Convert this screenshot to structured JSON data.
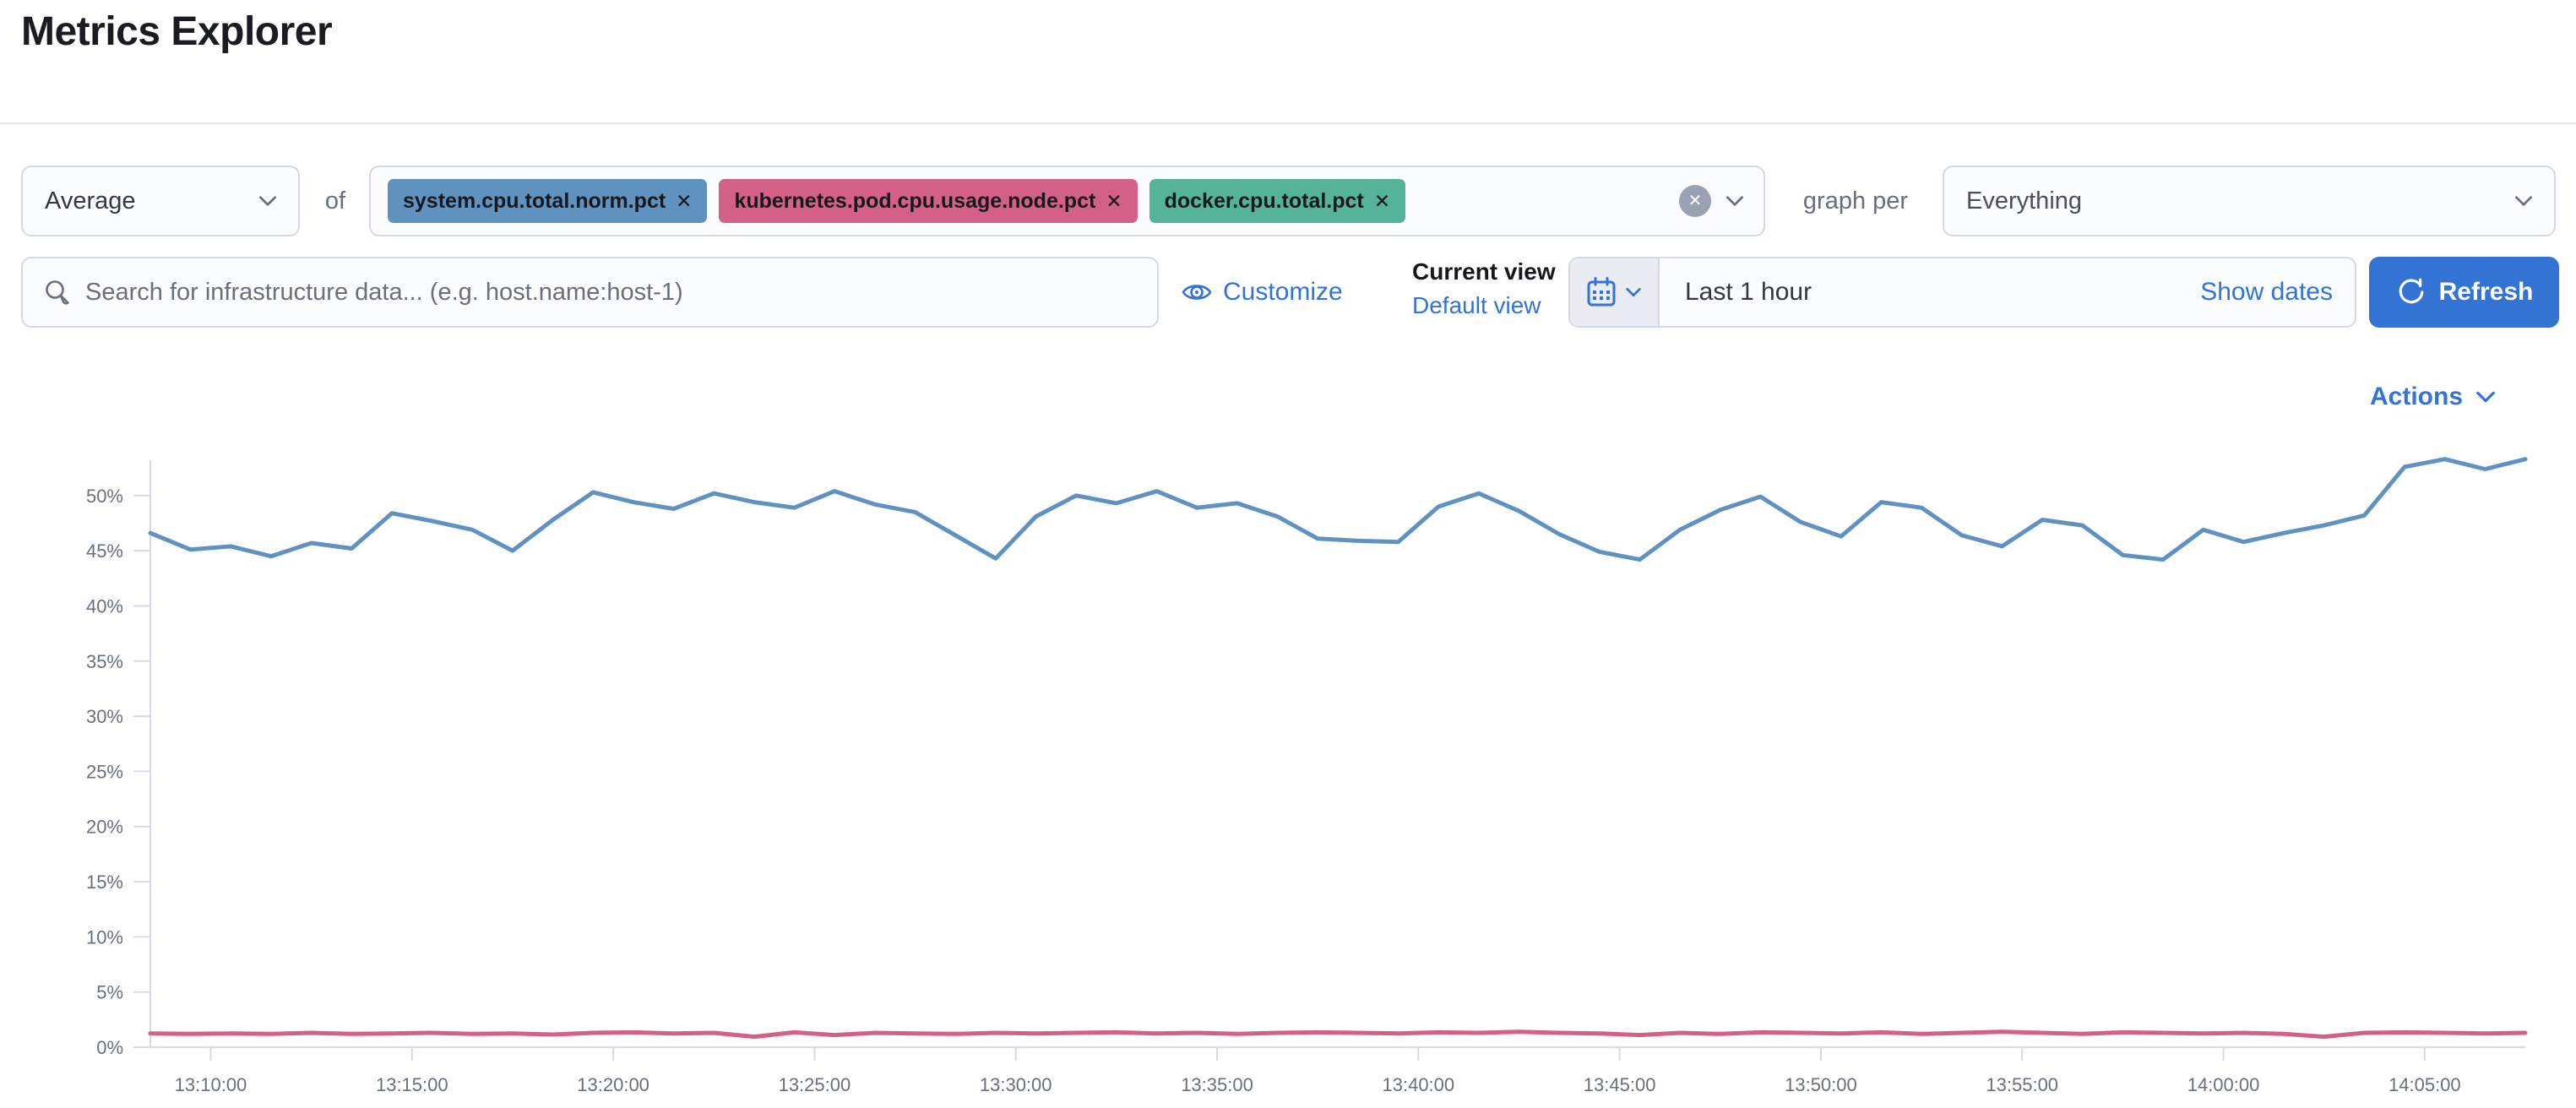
{
  "page": {
    "title": "Metrics Explorer"
  },
  "colors": {
    "accent": "#3273d4",
    "border": "#d3dae6",
    "axis": "#d5dae3",
    "axis_text": "#69707d",
    "pill_blue": "#6092c0",
    "pill_pink": "#d36086",
    "pill_green": "#54b399"
  },
  "toolbar": {
    "aggregation": {
      "value": "Average"
    },
    "of_label": "of",
    "metrics": [
      {
        "label": "system.cpu.total.norm.pct",
        "color": "#6092c0",
        "remove_icon": "✕"
      },
      {
        "label": "kubernetes.pod.cpu.usage.node.pct",
        "color": "#d36086",
        "remove_icon": "✕"
      },
      {
        "label": "docker.cpu.total.pct",
        "color": "#54b399",
        "remove_icon": "✕"
      }
    ],
    "clear_icon": "✕",
    "graph_per_label": "graph per",
    "graph_per": {
      "value": "Everything"
    }
  },
  "searchbar": {
    "placeholder": "Search for infrastructure data... (e.g. host.name:host-1)",
    "customize_label": "Customize",
    "current_view_label": "Current view",
    "view_value": "Default view",
    "time_range": "Last 1 hour",
    "show_dates_label": "Show dates",
    "refresh_label": "Refresh"
  },
  "chart_header": {
    "actions_label": "Actions"
  },
  "chart_data": {
    "type": "line",
    "title": "",
    "xlabel": "",
    "ylabel": "",
    "grid": false,
    "legend": "none",
    "x_tick_labels": [
      "13:10:00",
      "13:15:00",
      "13:20:00",
      "13:25:00",
      "13:30:00",
      "13:35:00",
      "13:40:00",
      "13:45:00",
      "13:50:00",
      "13:55:00",
      "14:00:00",
      "14:05:00"
    ],
    "x_range_seconds": 3540,
    "x_first_tick_offset_seconds": 90,
    "x_tick_interval_seconds": 300,
    "y_ticks_pct": [
      0,
      5,
      10,
      15,
      20,
      25,
      30,
      35,
      40,
      45,
      50
    ],
    "ylim": [
      0,
      53.2
    ],
    "y_unit": "%",
    "series": [
      {
        "name": "system.cpu.total.norm.pct",
        "color": "#6092c0",
        "values": [
          46.6,
          45.1,
          45.4,
          44.5,
          45.7,
          45.2,
          48.4,
          47.7,
          46.9,
          45.0,
          47.8,
          50.3,
          49.4,
          48.8,
          50.2,
          49.4,
          48.9,
          50.4,
          49.2,
          48.5,
          46.4,
          44.3,
          48.1,
          50.0,
          49.3,
          50.4,
          48.9,
          49.3,
          48.1,
          46.1,
          45.9,
          45.8,
          49.0,
          50.2,
          48.6,
          46.5,
          44.9,
          44.2,
          46.9,
          48.7,
          49.9,
          47.6,
          46.3,
          49.4,
          48.9,
          46.4,
          45.4,
          47.8,
          47.3,
          44.6,
          44.2,
          46.9,
          45.8,
          46.6,
          47.3,
          48.2,
          52.6,
          53.3,
          52.4,
          53.3
        ]
      },
      {
        "name": "kubernetes.pod.cpu.usage.node.pct",
        "color": "#d36086",
        "values": [
          1.25,
          1.2,
          1.25,
          1.2,
          1.3,
          1.2,
          1.25,
          1.3,
          1.2,
          1.25,
          1.15,
          1.3,
          1.35,
          1.25,
          1.3,
          0.95,
          1.35,
          1.1,
          1.3,
          1.25,
          1.2,
          1.3,
          1.25,
          1.3,
          1.35,
          1.25,
          1.3,
          1.2,
          1.3,
          1.35,
          1.3,
          1.25,
          1.35,
          1.3,
          1.4,
          1.3,
          1.25,
          1.1,
          1.3,
          1.2,
          1.35,
          1.3,
          1.25,
          1.35,
          1.2,
          1.3,
          1.4,
          1.3,
          1.2,
          1.35,
          1.3,
          1.25,
          1.3,
          1.2,
          0.95,
          1.3,
          1.35,
          1.3,
          1.25,
          1.3
        ]
      }
    ]
  }
}
